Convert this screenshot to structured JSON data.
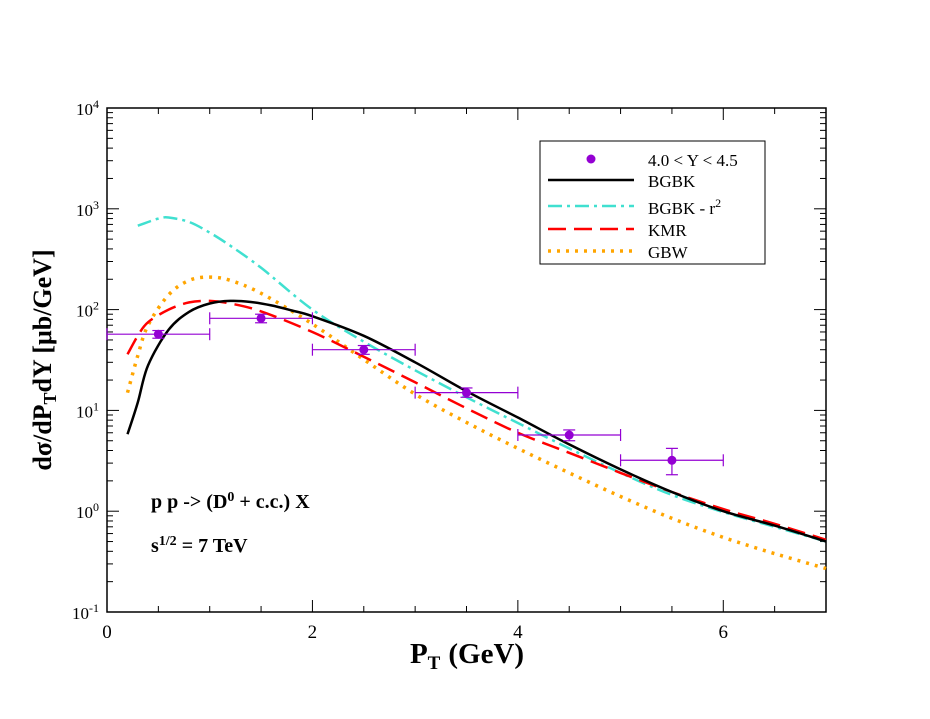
{
  "chart_data": {
    "type": "line",
    "title": "",
    "xlabel": "P",
    "xlabel_sub": "T",
    "xlabel_unit": "(GeV)",
    "ylabel": "dσ/dP",
    "ylabel_sub": "T",
    "ylabel_rest": "dY [μb/GeV]",
    "xlim": [
      0,
      7
    ],
    "ylim_log10": [
      -1,
      4
    ],
    "x_major_ticks": [
      0,
      2,
      4,
      6
    ],
    "x_tick_labels": [
      "0",
      "2",
      "4",
      "6"
    ],
    "y_major_ticks": [
      {
        "exp": -1,
        "base": "10",
        "sup": "-1"
      },
      {
        "exp": 0,
        "base": "10",
        "sup": "0"
      },
      {
        "exp": 1,
        "base": "10",
        "sup": "1"
      },
      {
        "exp": 2,
        "base": "10",
        "sup": "2"
      },
      {
        "exp": 3,
        "base": "10",
        "sup": "3"
      },
      {
        "exp": 4,
        "base": "10",
        "sup": "4"
      }
    ],
    "annotation": {
      "line1_pre": "p p -> (D",
      "line1_sup": "0",
      "line1_post": " + c.c.) X",
      "line2_pre": "s",
      "line2_sup": "1/2",
      "line2_post": " = 7 TeV"
    },
    "legend_position": "top-right",
    "data_points": {
      "name": "4.0 < Y < 4.5",
      "color": "#9400d3",
      "points": [
        {
          "x": 0.5,
          "y": 57,
          "xerr": 0.5,
          "ylo": 52,
          "yhi": 62
        },
        {
          "x": 1.5,
          "y": 82,
          "xerr": 0.5,
          "ylo": 74,
          "yhi": 90
        },
        {
          "x": 2.5,
          "y": 40,
          "xerr": 0.5,
          "ylo": 36,
          "yhi": 44
        },
        {
          "x": 3.5,
          "y": 15,
          "xerr": 0.5,
          "ylo": 13.5,
          "yhi": 16.7
        },
        {
          "x": 4.5,
          "y": 5.7,
          "xerr": 0.5,
          "ylo": 5.0,
          "yhi": 6.4
        },
        {
          "x": 5.5,
          "y": 3.2,
          "xerr": 0.5,
          "ylo": 2.3,
          "yhi": 4.2
        }
      ]
    },
    "series": [
      {
        "name": "BGBK",
        "label": "BGBK",
        "color": "#000000",
        "dash": "",
        "x": [
          0.2,
          0.3,
          0.4,
          0.6,
          0.8,
          1.0,
          1.2,
          1.4,
          1.6,
          1.8,
          2.0,
          2.5,
          3.0,
          3.5,
          4.0,
          4.5,
          5.0,
          5.5,
          6.0,
          6.5,
          7.0
        ],
        "y": [
          5.8,
          12,
          28,
          63,
          95,
          115,
          122,
          119,
          110,
          98,
          86,
          55,
          30,
          15.5,
          8.5,
          4.6,
          2.6,
          1.55,
          1.0,
          0.72,
          0.5
        ]
      },
      {
        "name": "BGBK - r2",
        "label": "BGBK - r",
        "label_sup": "2",
        "color": "#40e0d0",
        "dash": "14,5,3,5",
        "x": [
          0.3,
          0.4,
          0.5,
          0.6,
          0.8,
          1.0,
          1.2,
          1.5,
          2.0,
          2.5,
          3.0,
          3.5,
          4.0,
          4.5,
          5.0,
          5.5,
          6.0,
          6.5,
          7.0
        ],
        "y": [
          680,
          740,
          800,
          820,
          740,
          580,
          430,
          260,
          100,
          48,
          25,
          13.5,
          7.5,
          4.2,
          2.4,
          1.45,
          0.98,
          0.7,
          0.5
        ]
      },
      {
        "name": "KMR",
        "label": "KMR",
        "color": "#ff0000",
        "dash": "18,8",
        "x": [
          0.2,
          0.3,
          0.4,
          0.6,
          0.8,
          1.0,
          1.2,
          1.5,
          2.0,
          2.5,
          3.0,
          3.5,
          4.0,
          4.5,
          5.0,
          5.5,
          6.0,
          6.5,
          7.0
        ],
        "y": [
          36,
          55,
          75,
          100,
          118,
          122,
          115,
          96,
          60,
          34,
          19,
          10.5,
          6.0,
          3.8,
          2.4,
          1.55,
          1.05,
          0.75,
          0.52
        ]
      },
      {
        "name": "GBW",
        "label": "GBW",
        "color": "#ffa500",
        "dash": "3,6",
        "x": [
          0.2,
          0.3,
          0.4,
          0.6,
          0.8,
          1.0,
          1.2,
          1.5,
          2.0,
          2.5,
          3.0,
          3.5,
          4.0,
          4.5,
          5.0,
          5.5,
          6.0,
          6.5,
          7.0
        ],
        "y": [
          15,
          35,
          70,
          140,
          195,
          210,
          195,
          145,
          72,
          32,
          14.5,
          7.6,
          4.2,
          2.4,
          1.4,
          0.85,
          0.55,
          0.38,
          0.27
        ]
      }
    ]
  }
}
